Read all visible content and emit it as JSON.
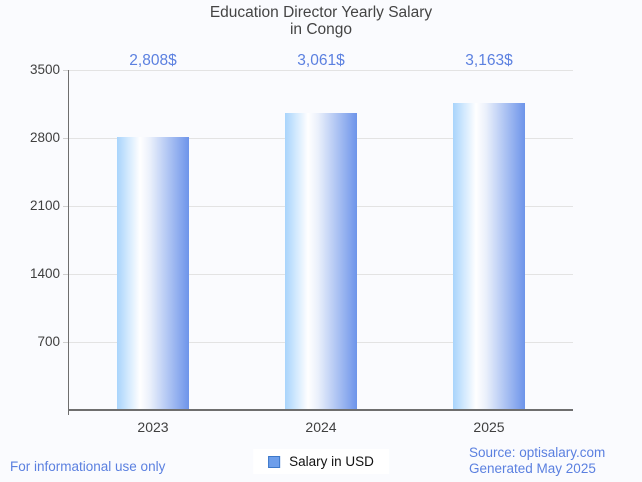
{
  "title": {
    "line1": "Education Director Yearly Salary",
    "line2": "in Congo"
  },
  "chart_data": {
    "type": "bar",
    "categories": [
      "2023",
      "2024",
      "2025"
    ],
    "values": [
      2808,
      3061,
      3163
    ],
    "data_labels": [
      "2,808$",
      "3,061$",
      "3,163$"
    ],
    "series_name": "Salary in USD",
    "ylabel": "",
    "xlabel": "",
    "ylim": [
      0,
      3500
    ],
    "yticks": [
      700,
      1400,
      2100,
      2800,
      3500
    ],
    "grid": "horizontal",
    "legend_position": "bottom-center"
  },
  "legend": {
    "label": "Salary in USD",
    "swatch_icon": "blue-square-icon"
  },
  "footer": {
    "disclaimer": "For informational use only",
    "source": "Source: optisalary.com",
    "generated": "Generated May 2025"
  },
  "colors": {
    "background": "#fafbfe",
    "title_text": "#444444",
    "axis_text": "#3f3f3f",
    "label_blue": "#5b80e0",
    "gridline": "#e3e3e3",
    "axis_line": "#6e6e6e",
    "bar_gradient_left": "#a8d4fc",
    "bar_gradient_right": "#6d94ea",
    "legend_swatch_fill": "#6d9eeb",
    "legend_swatch_border": "#3d78c9"
  }
}
